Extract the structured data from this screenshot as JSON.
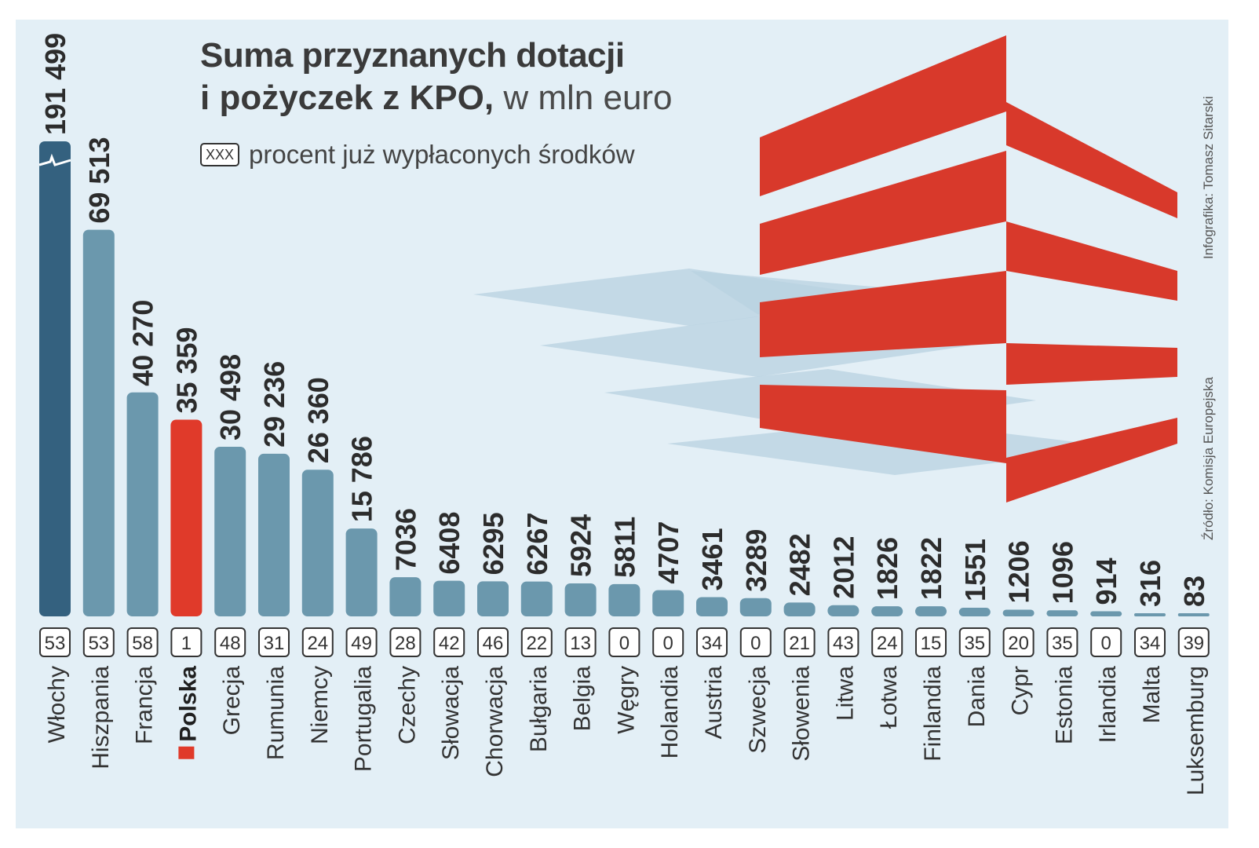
{
  "title": {
    "line1": "Suma przyznanych dotacji",
    "line2": "i pożyczek z KPO,",
    "unit": "w mln euro"
  },
  "legend": {
    "box_label": "XXX",
    "text": "procent już wypłaconych środków"
  },
  "credits": {
    "infographic": "Infografika: Tomasz Sitarski",
    "source": "Źródło: Komisja Europejska"
  },
  "colors": {
    "background": "#e3eff6",
    "bar": "#6b98ad",
    "bar_first": "#34617f",
    "bar_highlight": "#e03a2a",
    "flag_red": "#d8392b",
    "shadow": "#b8d2e0"
  },
  "chart_data": {
    "type": "bar",
    "title": "Suma przyznanych dotacji i pożyczek z KPO, w mln euro",
    "categories": [
      "Włochy",
      "Hiszpania",
      "Francja",
      "Polska",
      "Grecja",
      "Rumunia",
      "Niemcy",
      "Portugalia",
      "Czechy",
      "Słowacja",
      "Chorwacja",
      "Bułgaria",
      "Belgia",
      "Węgry",
      "Holandia",
      "Austria",
      "Szwecja",
      "Słowenia",
      "Litwa",
      "Łotwa",
      "Finlandia",
      "Dania",
      "Cypr",
      "Estonia",
      "Irlandia",
      "Malta",
      "Luksemburg"
    ],
    "value_labels": [
      "191 499",
      "69 513",
      "40 270",
      "35 359",
      "30 498",
      "29 236",
      "26 360",
      "15 786",
      "7036",
      "6408",
      "6295",
      "6267",
      "5924",
      "5811",
      "4707",
      "3461",
      "3289",
      "2482",
      "2012",
      "1826",
      "1822",
      "1551",
      "1206",
      "1096",
      "914",
      "316",
      "83"
    ],
    "series": [
      {
        "name": "Suma przyznanych dotacji i pożyczek z KPO, w mln euro",
        "values": [
          191499,
          69513,
          40270,
          35359,
          30498,
          29236,
          26360,
          15786,
          7036,
          6408,
          6295,
          6267,
          5924,
          5811,
          4707,
          3461,
          3289,
          2482,
          2012,
          1826,
          1822,
          1551,
          1206,
          1096,
          914,
          316,
          83
        ]
      },
      {
        "name": "procent już wypłaconych środków",
        "values": [
          53,
          53,
          58,
          1,
          48,
          31,
          24,
          49,
          28,
          42,
          46,
          22,
          13,
          0,
          0,
          34,
          0,
          21,
          43,
          24,
          15,
          35,
          20,
          35,
          0,
          34,
          39
        ]
      }
    ],
    "axis_break": "Włochy",
    "highlight": "Polska",
    "xlabel": "",
    "ylabel": ""
  }
}
